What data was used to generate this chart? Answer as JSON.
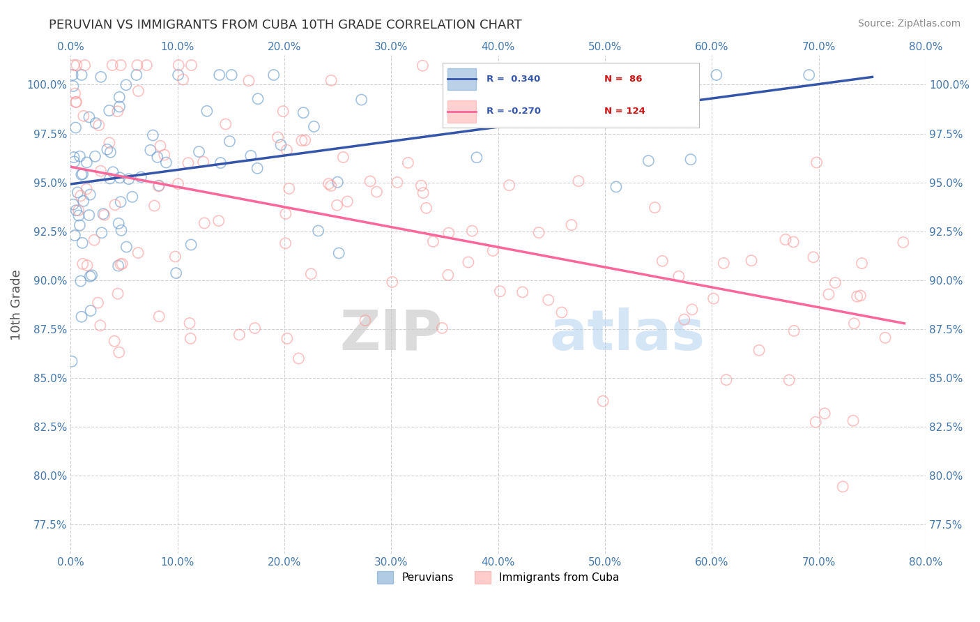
{
  "title": "PERUVIAN VS IMMIGRANTS FROM CUBA 10TH GRADE CORRELATION CHART",
  "source": "Source: ZipAtlas.com",
  "xlim": [
    0.0,
    80.0
  ],
  "ylim": [
    76.0,
    101.5
  ],
  "peruvian_color": "#6699CC",
  "cuba_color": "#FF9999",
  "peruvian_R": 0.34,
  "peruvian_N": 86,
  "cuba_R": -0.27,
  "cuba_N": 124,
  "legend_label_1": "Peruvians",
  "legend_label_2": "Immigrants from Cuba",
  "ylabel": "10th Grade",
  "watermark_zip": "ZIP",
  "watermark_atlas": "atlas",
  "background_color": "#ffffff",
  "grid_color": "#cccccc",
  "title_color": "#333333",
  "axis_label_color": "#4477AA",
  "peruvian_seed": 42,
  "cuba_seed": 77,
  "x_tick_vals": [
    0,
    10,
    20,
    30,
    40,
    50,
    60,
    70,
    80
  ],
  "y_tick_vals": [
    77.5,
    80.0,
    82.5,
    85.0,
    87.5,
    90.0,
    92.5,
    95.0,
    97.5,
    100.0
  ]
}
